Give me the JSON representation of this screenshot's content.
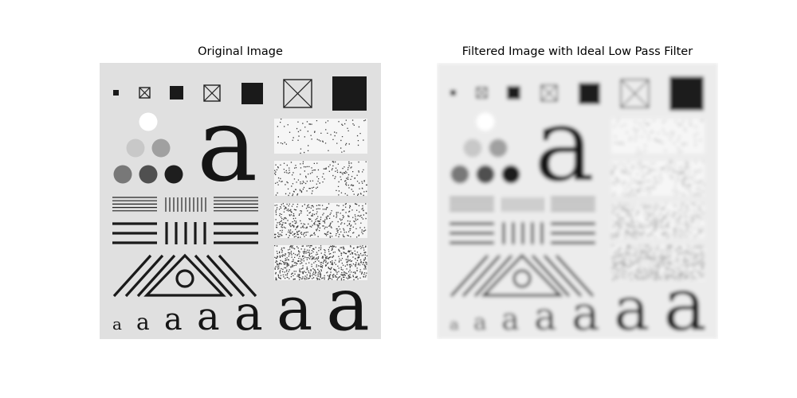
{
  "figure": {
    "panels": [
      {
        "title": "Original Image",
        "background_color": "#e0e0e0"
      },
      {
        "title": "Filtered Image with Ideal Low Pass Filter",
        "background_color": "#ececec",
        "filter": "ideal-low-pass"
      }
    ],
    "test_pattern": {
      "glyph": "a",
      "glyph_count_small_row": 7,
      "circle_gray_levels": [
        "#ffffff",
        "#c8c8c8",
        "#a0a0a0",
        "#787878",
        "#505050",
        "#1e1e1e"
      ],
      "noise_rectangles": 4,
      "square_count": 7
    }
  }
}
